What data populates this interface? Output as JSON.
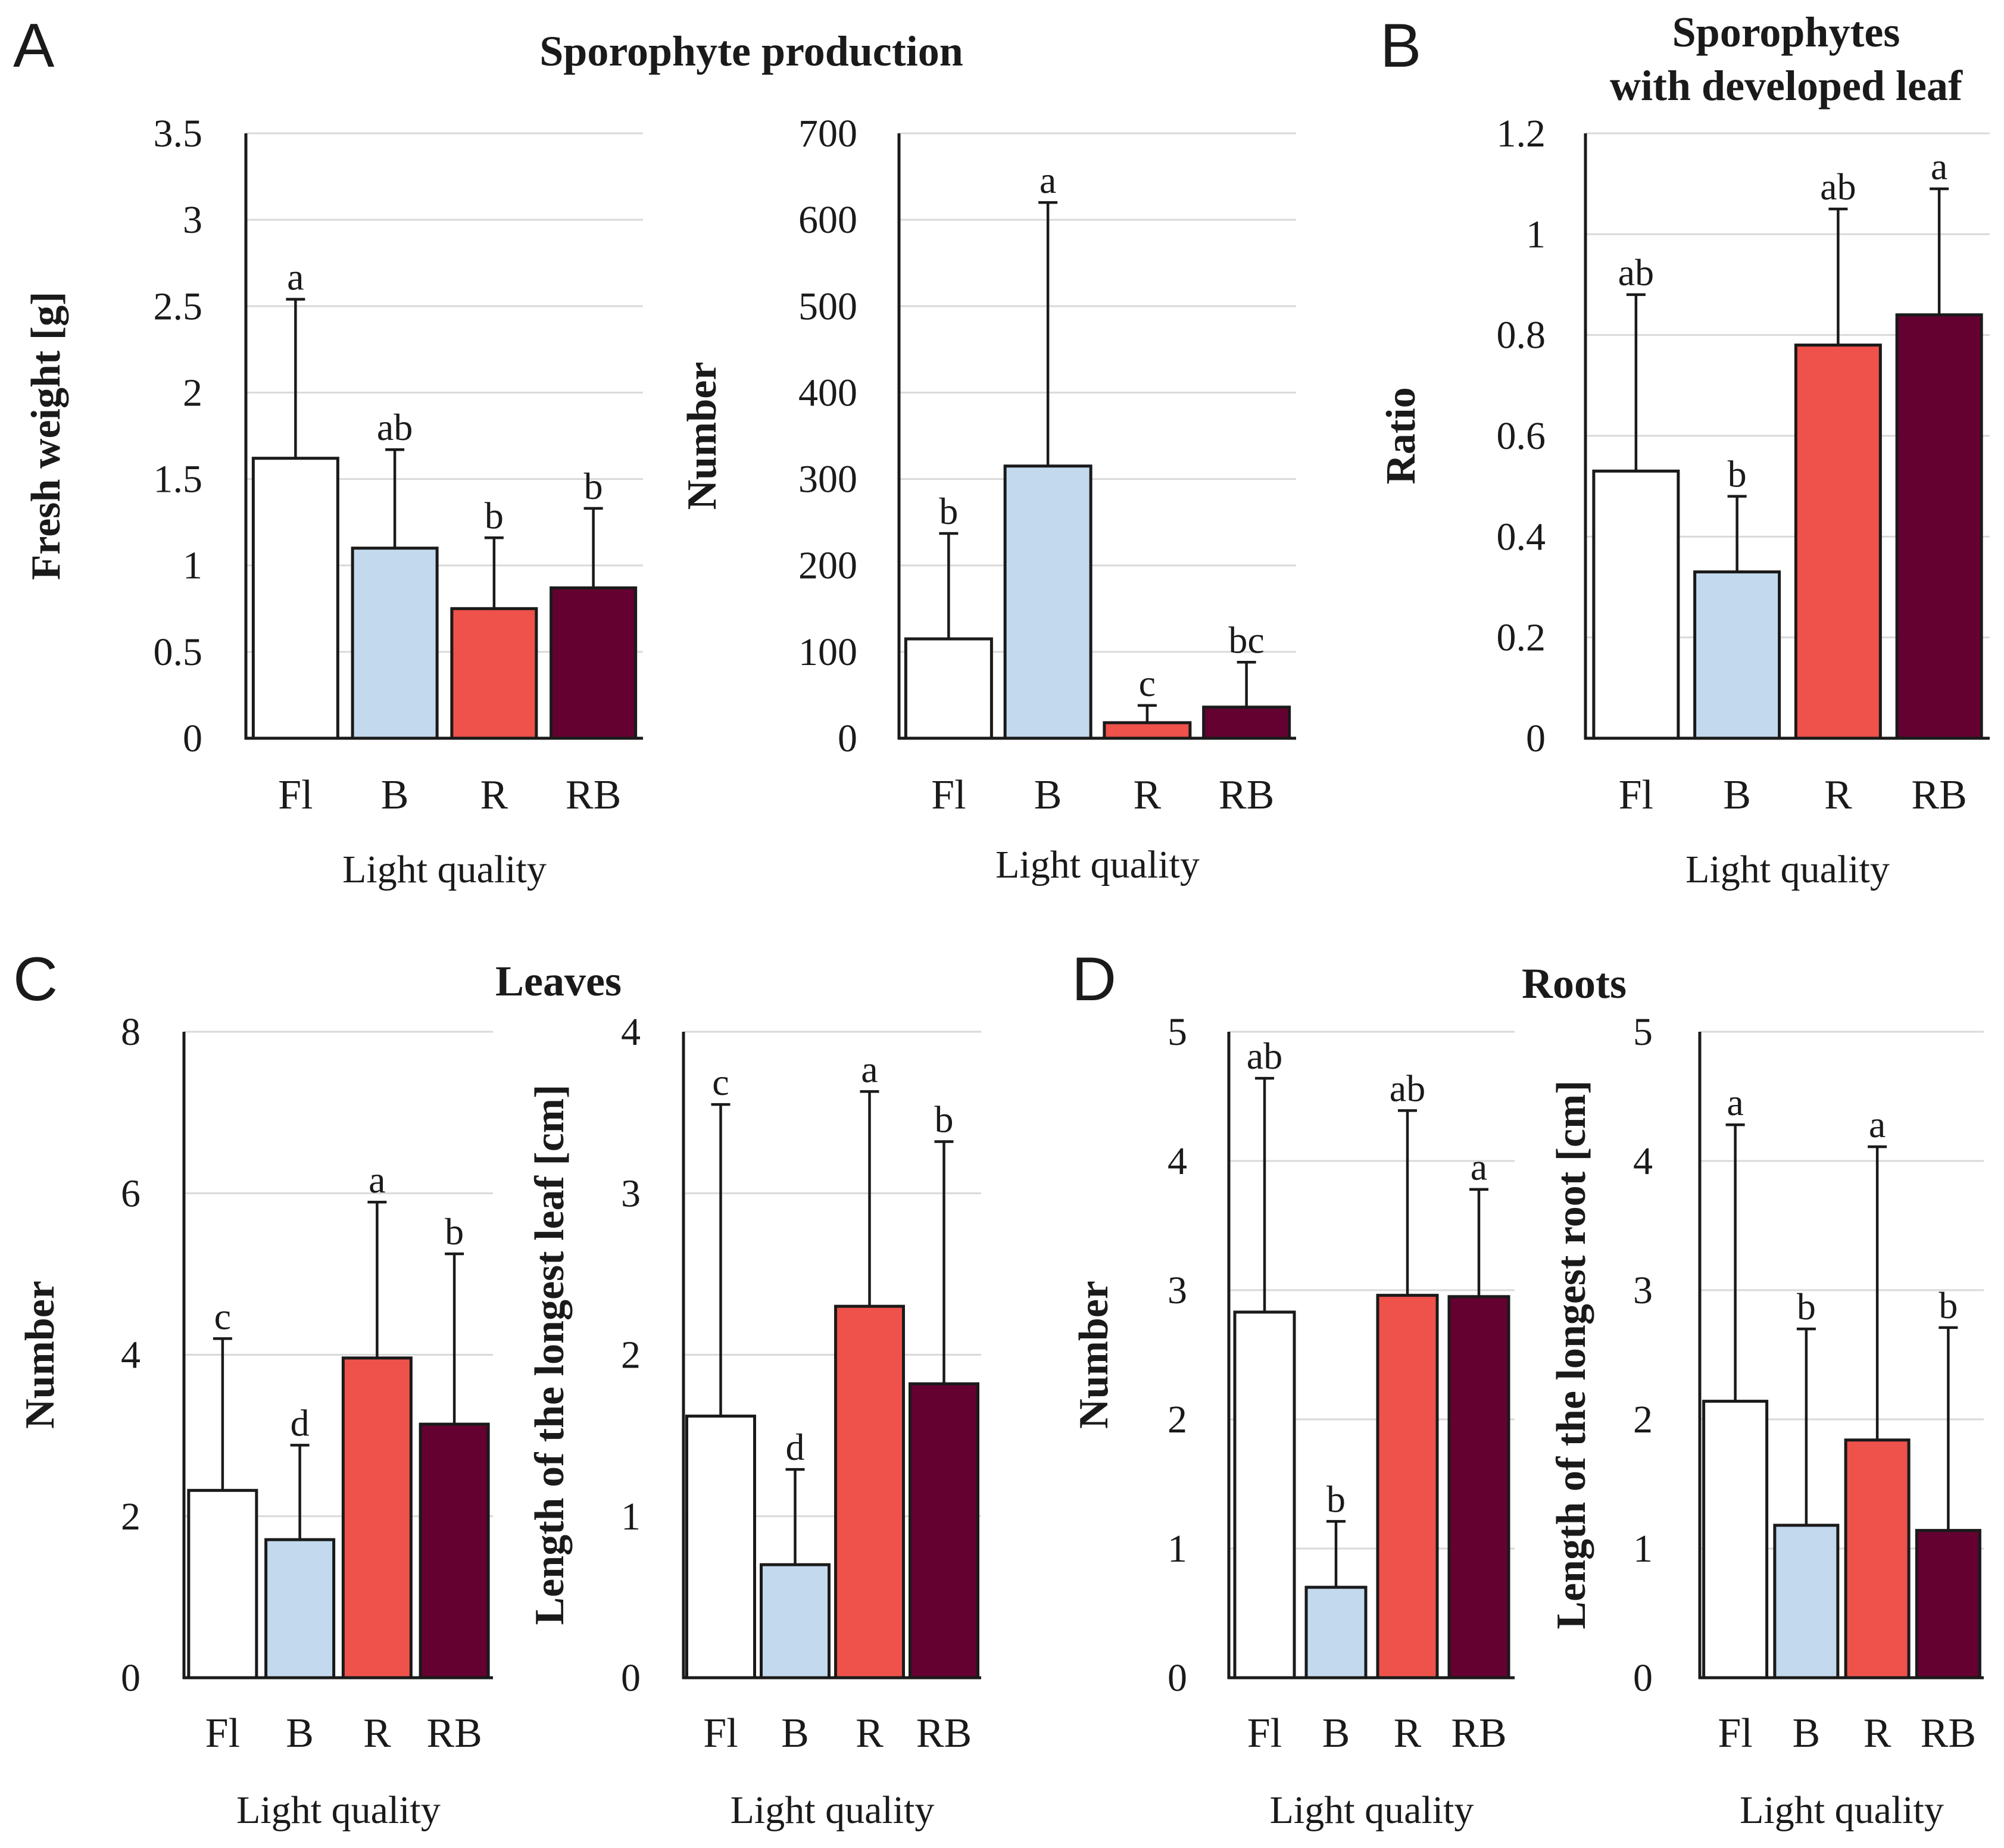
{
  "panels": [
    {
      "letter": "A"
    },
    {
      "letter": "B"
    },
    {
      "letter": "C"
    },
    {
      "letter": "D"
    }
  ],
  "titles": {
    "A": "Sporophyte production",
    "B_line1": "Sporophytes",
    "B_line2": "with developed leaf",
    "C": "Leaves",
    "D": "Roots"
  },
  "colors": {
    "Fl": "#ffffff",
    "B": "#c3daee",
    "R": "#ee524a",
    "RB": "#650131"
  },
  "chart_data": [
    {
      "id": "A1",
      "type": "bar",
      "categories": [
        "Fl",
        "B",
        "R",
        "RB"
      ],
      "values": [
        1.62,
        1.1,
        0.75,
        0.87
      ],
      "errors": [
        0.92,
        0.57,
        0.41,
        0.46
      ],
      "significance": [
        "a",
        "ab",
        "b",
        "b"
      ],
      "ylim": [
        0,
        3.5
      ],
      "yticks": [
        0,
        0.5,
        1,
        1.5,
        2,
        2.5,
        3,
        3.5
      ],
      "ytick_labels": [
        "0",
        "0.5",
        "1",
        "1.5",
        "2",
        "2.5",
        "3",
        "3.5"
      ],
      "ylabel": "Fresh weight [g]",
      "xlabel": "Light quality"
    },
    {
      "id": "A2",
      "type": "bar",
      "categories": [
        "Fl",
        "B",
        "R",
        "RB"
      ],
      "values": [
        115,
        315,
        18,
        36
      ],
      "errors": [
        122,
        305,
        20,
        52
      ],
      "significance": [
        "b",
        "a",
        "c",
        "bc"
      ],
      "ylim": [
        0,
        700
      ],
      "yticks": [
        0,
        100,
        200,
        300,
        400,
        500,
        600,
        700
      ],
      "ytick_labels": [
        "0",
        "100",
        "200",
        "300",
        "400",
        "500",
        "600",
        "700"
      ],
      "ylabel": "Number",
      "xlabel": "Light quality"
    },
    {
      "id": "B1",
      "type": "bar",
      "categories": [
        "Fl",
        "B",
        "R",
        "RB"
      ],
      "values": [
        0.53,
        0.33,
        0.78,
        0.84
      ],
      "errors": [
        0.35,
        0.15,
        0.27,
        0.25
      ],
      "significance": [
        "ab",
        "b",
        "ab",
        "a"
      ],
      "ylim": [
        0,
        1.2
      ],
      "yticks": [
        0,
        0.2,
        0.4,
        0.6,
        0.8,
        1,
        1.2
      ],
      "ytick_labels": [
        "0",
        "0.2",
        "0.4",
        "0.6",
        "0.8",
        "1",
        "1.2"
      ],
      "ylabel": "Ratio",
      "xlabel": "Light quality"
    },
    {
      "id": "C1",
      "type": "bar",
      "categories": [
        "Fl",
        "B",
        "R",
        "RB"
      ],
      "values": [
        2.32,
        1.71,
        3.96,
        3.14
      ],
      "errors": [
        1.88,
        1.17,
        1.93,
        2.11
      ],
      "significance": [
        "c",
        "d",
        "a",
        "b"
      ],
      "ylim": [
        0,
        8
      ],
      "yticks": [
        0,
        2,
        4,
        6,
        8
      ],
      "ytick_labels": [
        "0",
        "2",
        "4",
        "6",
        "8"
      ],
      "ylabel": "Number",
      "xlabel": "Light quality"
    },
    {
      "id": "C2",
      "type": "bar",
      "categories": [
        "Fl",
        "B",
        "R",
        "RB"
      ],
      "values": [
        1.62,
        0.7,
        2.3,
        1.82
      ],
      "errors": [
        1.93,
        0.59,
        1.33,
        1.5
      ],
      "significance": [
        "c",
        "d",
        "a",
        "b"
      ],
      "ylim": [
        0,
        4
      ],
      "yticks": [
        0,
        1,
        2,
        3,
        4
      ],
      "ytick_labels": [
        "0",
        "1",
        "2",
        "3",
        "4"
      ],
      "ylabel": "Length of the longest leaf [cm]",
      "xlabel": "Light quality"
    },
    {
      "id": "D1",
      "type": "bar",
      "categories": [
        "Fl",
        "B",
        "R",
        "RB"
      ],
      "values": [
        2.83,
        0.7,
        2.96,
        2.95
      ],
      "errors": [
        1.81,
        0.51,
        1.43,
        0.83
      ],
      "significance": [
        "ab",
        "b",
        "ab",
        "a"
      ],
      "ylim": [
        0,
        5
      ],
      "yticks": [
        0,
        1,
        2,
        3,
        4,
        5
      ],
      "ytick_labels": [
        "0",
        "1",
        "2",
        "3",
        "4",
        "5"
      ],
      "ylabel": "Number",
      "xlabel": "Light quality"
    },
    {
      "id": "D2",
      "type": "bar",
      "categories": [
        "Fl",
        "B",
        "R",
        "RB"
      ],
      "values": [
        2.14,
        1.18,
        1.84,
        1.14
      ],
      "errors": [
        2.14,
        1.52,
        2.27,
        1.57
      ],
      "significance": [
        "a",
        "b",
        "a",
        "b"
      ],
      "ylim": [
        0,
        5
      ],
      "yticks": [
        0,
        1,
        2,
        3,
        4,
        5
      ],
      "ytick_labels": [
        "0",
        "1",
        "2",
        "3",
        "4",
        "5"
      ],
      "ylabel": "Length of the longest root [cm]",
      "xlabel": "Light quality"
    }
  ]
}
